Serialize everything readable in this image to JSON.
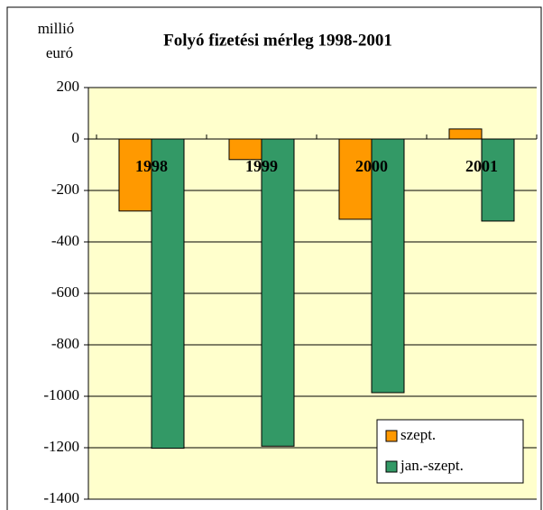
{
  "chart_data": {
    "type": "bar",
    "title": "Folyó fizetési mérleg 1998-2001",
    "y_label": [
      "millió",
      "euró"
    ],
    "categories": [
      "1998",
      "1999",
      "2000",
      "2001"
    ],
    "series": [
      {
        "name": "szept.",
        "color": "#ff9900",
        "values": [
          -280,
          -80,
          -312,
          39
        ]
      },
      {
        "name": "jan.-szept.",
        "color": "#339966",
        "values": [
          -1202,
          -1194,
          -986,
          -319
        ]
      }
    ],
    "ylim": [
      -1400,
      200
    ],
    "yticks": [
      -1400,
      -1200,
      -1000,
      -800,
      -600,
      -400,
      -200,
      0,
      200
    ],
    "grid": true,
    "legend": "lower right",
    "background": "#ffffcc"
  }
}
